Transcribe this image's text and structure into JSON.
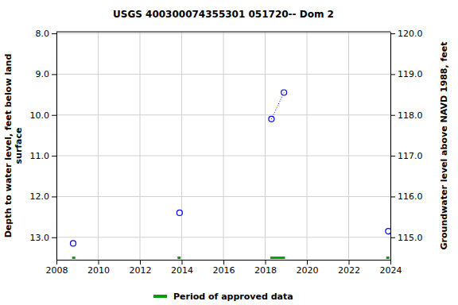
{
  "chart_data": {
    "type": "scatter",
    "title": "USGS 400300074355301 051720-- Dom 2",
    "ylabel": [
      "Depth to water level, feet below land",
      "surface"
    ],
    "y2label": "Groundwater level above NAVD 1988, feet",
    "xlim": [
      2008,
      2024
    ],
    "xticks": [
      2008,
      2010,
      2012,
      2014,
      2016,
      2018,
      2020,
      2022,
      2024
    ],
    "ylim": [
      7.96,
      13.55
    ],
    "yticks": [
      {
        "value": 8,
        "label": "8.0"
      },
      {
        "value": 9,
        "label": "9.0"
      },
      {
        "value": 10,
        "label": "10.0"
      },
      {
        "value": 11,
        "label": "11.0"
      },
      {
        "value": 12,
        "label": "12.0"
      },
      {
        "value": 13,
        "label": "13.0"
      }
    ],
    "y2lim": [
      120.04,
      114.45
    ],
    "y2ticks": [
      {
        "value": 120,
        "label": "120.0"
      },
      {
        "value": 119,
        "label": "119.0"
      },
      {
        "value": 118,
        "label": "118.0"
      },
      {
        "value": 117,
        "label": "117.0"
      },
      {
        "value": 116,
        "label": "116.0"
      },
      {
        "value": 115,
        "label": "115.0"
      }
    ],
    "grid": true,
    "legend": "bottom",
    "series": [
      {
        "type": "scatter",
        "marker": "circle",
        "color": "#0000ff",
        "x": [
          2008.8,
          2013.9,
          2018.3,
          2018.9,
          2023.9
        ],
        "values": [
          13.15,
          12.4,
          10.1,
          9.45,
          12.85
        ]
      },
      {
        "type": "line",
        "line_style": "dotted",
        "color": "#0000ff",
        "x": [
          2018.3,
          2018.9
        ],
        "values": [
          10.1,
          9.45
        ]
      },
      {
        "type": "range",
        "name": "Period of approved data",
        "color": "#00a000",
        "periods": [
          [
            2008.75,
            2008.9
          ],
          [
            2013.8,
            2013.95
          ],
          [
            2018.25,
            2018.95
          ],
          [
            2023.8,
            2023.95
          ]
        ]
      }
    ]
  }
}
